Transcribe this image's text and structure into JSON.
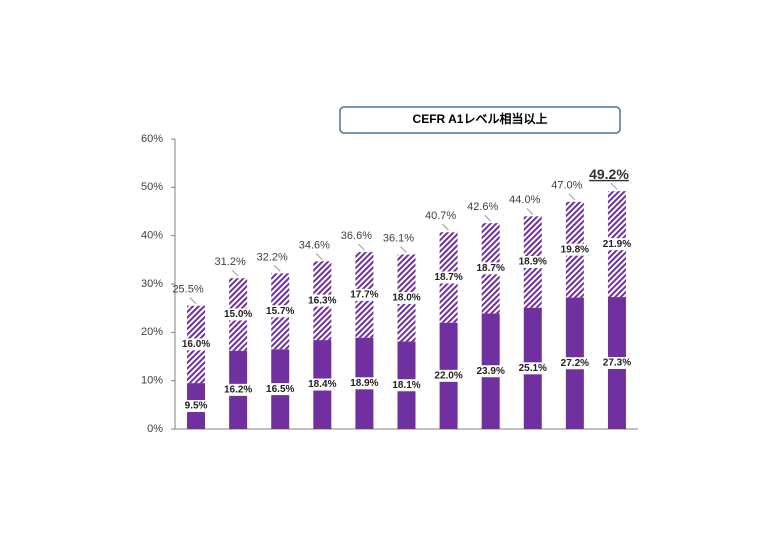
{
  "chart_data": {
    "type": "stacked_bar",
    "title": "CEFR A1レベル相当以上",
    "categories": [
      null,
      null,
      null,
      null,
      null,
      null,
      null,
      null,
      null,
      null,
      null
    ],
    "series": [
      {
        "color": "#7030a0",
        "pattern": "solid",
        "values": [
          9.5,
          16.2,
          16.5,
          18.4,
          18.9,
          18.1,
          22.0,
          23.9,
          25.1,
          27.2,
          27.3
        ],
        "value_labels": [
          "9.5%",
          "16.2%",
          "16.5%",
          "18.4%",
          "18.9%",
          "18.1%",
          "22.0%",
          "23.9%",
          "25.1%",
          "27.2%",
          "27.3%"
        ]
      },
      {
        "color": "#7030a0",
        "pattern": "hatch",
        "values": [
          16.0,
          15.0,
          15.7,
          16.3,
          17.7,
          18.0,
          18.7,
          18.7,
          18.9,
          19.8,
          21.9
        ],
        "value_labels": [
          "16.0%",
          "15.0%",
          "15.7%",
          "16.3%",
          "17.7%",
          "18.0%",
          "18.7%",
          "18.7%",
          "18.9%",
          "19.8%",
          "21.9%"
        ]
      }
    ],
    "totals": [
      25.5,
      31.2,
      32.2,
      34.6,
      36.6,
      36.1,
      40.7,
      42.6,
      44.0,
      47.0,
      49.2
    ],
    "total_labels": [
      "25.5%",
      "31.2%",
      "32.2%",
      "34.6%",
      "36.6%",
      "36.1%",
      "40.7%",
      "42.6%",
      "44.0%",
      "47.0%",
      "49.2%"
    ],
    "ylim": [
      0,
      60
    ],
    "yticks": [
      {
        "value": 0,
        "label": "0%"
      },
      {
        "value": 10,
        "label": "10%"
      },
      {
        "value": 20,
        "label": "20%"
      },
      {
        "value": 30,
        "label": "30%"
      },
      {
        "value": 40,
        "label": "40%"
      },
      {
        "value": 50,
        "label": "50%"
      },
      {
        "value": 60,
        "label": "60%"
      }
    ]
  }
}
